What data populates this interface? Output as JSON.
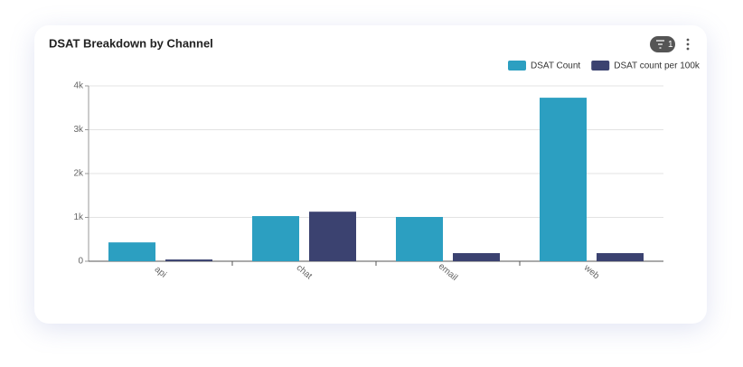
{
  "toolbar": {
    "filter_count": 1
  },
  "chart_data": {
    "type": "bar",
    "title": "DSAT Breakdown by Channel",
    "categories": [
      "api",
      "chat",
      "email",
      "web"
    ],
    "series": [
      {
        "name": "DSAT Count",
        "color": "#2c9fc1",
        "values": [
          430,
          1030,
          1010,
          3730
        ]
      },
      {
        "name": "DSAT count per 100k",
        "color": "#3b4270",
        "values": [
          40,
          1130,
          185,
          185
        ]
      }
    ],
    "ylim": [
      0,
      4000
    ],
    "yticks": [
      0,
      {
        "value": 1000,
        "label": "1k"
      },
      {
        "value": 2000,
        "label": "2k"
      },
      {
        "value": 3000,
        "label": "3k"
      },
      {
        "value": 4000,
        "label": "4k"
      }
    ],
    "grid": true,
    "legend": "top-right"
  }
}
